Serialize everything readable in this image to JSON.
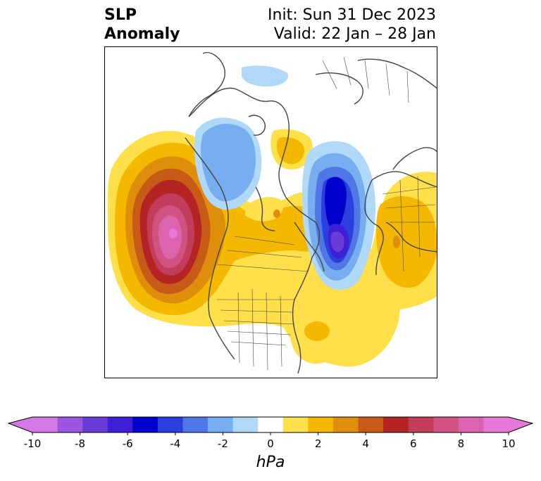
{
  "header": {
    "title_line1": "SLP",
    "title_line2": "Anomaly",
    "init_label": "Init: Sun 31 Dec 2023",
    "valid_label": "Valid: 22 Jan – 28 Jan"
  },
  "colorbar": {
    "unit": "hPa",
    "ticks": [
      "-10",
      "-8",
      "-6",
      "-4",
      "-2",
      "0",
      "2",
      "4",
      "6",
      "8",
      "10"
    ],
    "bins": [
      "#d478e6",
      "#9c55df",
      "#6a3cd7",
      "#3f1fd6",
      "#0000cc",
      "#2a3fdb",
      "#4f77e6",
      "#77aef0",
      "#b0d9f8",
      "#ffffff",
      "#ffe04a",
      "#f4b800",
      "#df8e0c",
      "#c85a18",
      "#b52424",
      "#c23d59",
      "#cf5281",
      "#dc63ad",
      "#e678d8"
    ],
    "extend_low_color": "#d478e6",
    "extend_high_color": "#e678d8"
  },
  "colors": {
    "land_outline": "#444444",
    "frame": "#000000"
  }
}
